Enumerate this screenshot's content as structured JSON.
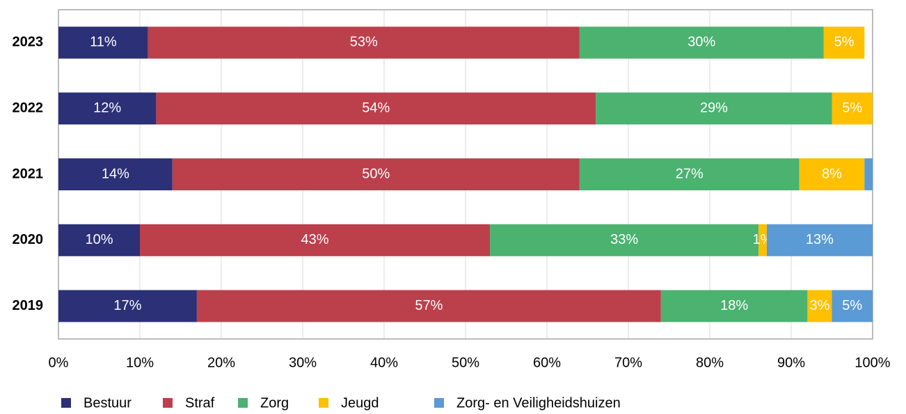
{
  "chart_data": {
    "type": "stacked_barh",
    "categories": [
      "2023",
      "2022",
      "2021",
      "2020",
      "2019"
    ],
    "series": [
      {
        "name": "Bestuur",
        "color": "#2b3077",
        "values": [
          11,
          12,
          14,
          10,
          17
        ],
        "value_labels": [
          "11%",
          "12%",
          "14%",
          "10%",
          "17%"
        ]
      },
      {
        "name": "Straf",
        "color": "#bc3f4c",
        "values": [
          53,
          54,
          50,
          43,
          57
        ],
        "value_labels": [
          "53%",
          "54%",
          "50%",
          "43%",
          "57%"
        ]
      },
      {
        "name": "Zorg",
        "color": "#4bb270",
        "values": [
          30,
          29,
          27,
          33,
          18
        ],
        "value_labels": [
          "30%",
          "29%",
          "27%",
          "33%",
          "18%"
        ]
      },
      {
        "name": "Jeugd",
        "color": "#ffc000",
        "values": [
          5,
          5,
          8,
          1,
          3
        ],
        "value_labels": [
          "5%",
          "5%",
          "8%",
          "1%",
          "3%"
        ]
      },
      {
        "name": "Zorg- en Veiligheidshuizen",
        "color": "#5b9bd5",
        "values": [
          null,
          null,
          1,
          13,
          5
        ],
        "value_labels": [
          null,
          null,
          null,
          "13%",
          "5%"
        ]
      }
    ],
    "xlim": [
      0,
      100
    ],
    "xticks": [
      {
        "value": 0,
        "label": "0%"
      },
      {
        "value": 10,
        "label": "10%"
      },
      {
        "value": 20,
        "label": "20%"
      },
      {
        "value": 30,
        "label": "30%"
      },
      {
        "value": 40,
        "label": "40%"
      },
      {
        "value": 50,
        "label": "50%"
      },
      {
        "value": 60,
        "label": "60%"
      },
      {
        "value": 70,
        "label": "70%"
      },
      {
        "value": 80,
        "label": "80%"
      },
      {
        "value": 90,
        "label": "90%"
      },
      {
        "value": 100,
        "label": "100%"
      }
    ],
    "grid": true,
    "legend": "bottom"
  }
}
